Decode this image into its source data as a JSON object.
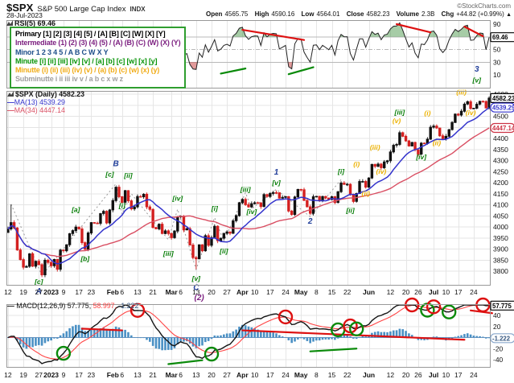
{
  "header": {
    "symbol": "$SPX",
    "name": "S&P 500 Large Cap Index",
    "exchange": "INDX",
    "source": "©StockCharts.com",
    "date": "28-Jul-2023",
    "quote": [
      {
        "label": "Open",
        "value": "4565.75"
      },
      {
        "label": "High",
        "value": "4590.16"
      },
      {
        "label": "Low",
        "value": "4564.01"
      },
      {
        "label": "Close",
        "value": "4582.23"
      },
      {
        "label": "Volume",
        "value": "2.3B"
      },
      {
        "label": "Chg",
        "value": "+44.82 (+0.99%)"
      }
    ],
    "chg_arrow": "▲"
  },
  "wave_legend": {
    "lines": [
      {
        "text": "Primary [1] [2] [3] [4] [5] / [A] [B] [C] [W] [X] [Y]",
        "color": "#000000"
      },
      {
        "text": "Intermediate (1) (2) (3) (4) (5) / (A) (B) (C) (W) (X) (Y)",
        "color": "#7d2181"
      },
      {
        "text": "Minor 1 2 3 4 5 / A B C W X Y",
        "color": "#1d4e89"
      },
      {
        "text": "Minute [i] [ii] [iii] [iv] [v] / [a] [b] [c] [w] [x] [y]",
        "color": "#089408"
      },
      {
        "text": "Minutte (i) (ii) (iii) (iv) (v) / (a) (b) (c) (w) (x) (y)",
        "color": "#f0ac18"
      },
      {
        "text": "Subminutte i ii iii iv v / a b c x w z",
        "color": "#a0a0a0"
      }
    ]
  },
  "rsi_legend": {
    "label": "RSI(5) 69.46"
  },
  "price_legend": {
    "dash": "—",
    "symbol_line": "$SPX (Daily) 4582.23",
    "ma13": "MA(13) 4539.29",
    "ma34": "MA(34) 4447.14"
  },
  "macd_legend": {
    "dash": "—",
    "main": " MACD(12,26,9) 57.775,",
    "signal": " 58.997,",
    "hist": " -1.222"
  },
  "colors": {
    "up": "#111111",
    "down": "#d42020",
    "ma13": "#3333cc",
    "ma34": "#d94f63",
    "macd": "#111111",
    "signal": "#ff4444",
    "hist": "#4a90c4",
    "hist_text": "#33557f",
    "hist_box_border": "#8aa8cc",
    "circle_red": "#dd1111",
    "circle_green": "#0a8a0a",
    "grid": "#e6e6e6",
    "panel_border": "#999999",
    "zigzag": "#9a9a9a",
    "rsi_fill_high": "rgba(0,110,0,0.35)",
    "rsi_fill_low": "rgba(190,30,30,0.45)",
    "wave": {
      "minor": "#223f9a",
      "minute": "#067d06",
      "intermediate": "#7d2181",
      "minutte": "#ecb100"
    }
  },
  "chart_data": {
    "type": "candlestick",
    "title": "$SPX S&P 500 Large Cap Index (Daily) with RSI(5) and MACD(12,26,9)",
    "x_axis": {
      "ticks": [
        [
          "12",
          0,
          0
        ],
        [
          "19",
          5,
          0
        ],
        [
          "27",
          10,
          0
        ],
        [
          "2023",
          14,
          1
        ],
        [
          "9",
          18,
          0
        ],
        [
          "17",
          23,
          0
        ],
        [
          "23",
          27,
          0
        ],
        [
          "Feb",
          34,
          1
        ],
        [
          "6",
          37,
          0
        ],
        [
          "13",
          42,
          0
        ],
        [
          "21",
          47,
          0
        ],
        [
          "Mar",
          53,
          1
        ],
        [
          "6",
          56,
          0
        ],
        [
          "13",
          61,
          0
        ],
        [
          "20",
          66,
          0
        ],
        [
          "27",
          71,
          0
        ],
        [
          "Apr",
          76,
          1
        ],
        [
          "10",
          80,
          0
        ],
        [
          "17",
          85,
          0
        ],
        [
          "24",
          90,
          0
        ],
        [
          "May",
          95,
          1
        ],
        [
          "8",
          100,
          0
        ],
        [
          "15",
          105,
          0
        ],
        [
          "22",
          110,
          0
        ],
        [
          "Jun",
          117,
          1
        ],
        [
          "12",
          124,
          0
        ],
        [
          "20",
          129,
          0
        ],
        [
          "26",
          133,
          0
        ],
        [
          "Jul",
          138,
          1
        ],
        [
          "10",
          142,
          0
        ],
        [
          "17",
          146,
          0
        ],
        [
          "24",
          151,
          0
        ]
      ]
    },
    "price_panel": {
      "ylim": [
        3800,
        4600
      ],
      "tick_step": 50,
      "first_open": 3975,
      "closes": [
        3990.6,
        4019.7,
        3995.3,
        3895.8,
        3852.4,
        3817.7,
        3821.6,
        3878.4,
        3822.4,
        3844.8,
        3829.3,
        3783.2,
        3849.3,
        3839.5,
        3824.1,
        3853.0,
        3808.1,
        3895.1,
        3892.1,
        3919.3,
        3969.6,
        3983.2,
        3999.1,
        3991.0,
        3928.9,
        3898.9,
        3972.6,
        4019.8,
        4017.0,
        4016.2,
        4060.4,
        4070.6,
        4017.8,
        4076.6,
        4119.2,
        4179.8,
        4136.5,
        4111.1,
        4164.0,
        4117.9,
        4081.5,
        4090.5,
        4137.3,
        4136.1,
        4147.6,
        4090.4,
        4079.1,
        3997.3,
        3991.1,
        4012.3,
        3970.0,
        3982.2,
        3970.2,
        3951.4,
        3981.4,
        4045.6,
        4048.4,
        3986.4,
        3992.0,
        3918.3,
        3861.6,
        3855.8,
        3919.3,
        3891.9,
        3960.3,
        3916.6,
        3951.6,
        4002.9,
        3937.0,
        3948.7,
        3971.0,
        3977.5,
        3971.3,
        4027.8,
        4050.8,
        4109.3,
        4124.5,
        4100.6,
        4090.4,
        4105.0,
        4109.1,
        4108.9,
        4092.0,
        4146.2,
        4137.6,
        4151.3,
        4154.9,
        4154.5,
        4129.8,
        4133.5,
        4137.0,
        4071.6,
        4056.0,
        4135.4,
        4169.5,
        4167.9,
        4119.6,
        4090.8,
        4061.2,
        4136.3,
        4138.1,
        4119.2,
        4137.6,
        4130.6,
        4124.1,
        4136.3,
        4109.9,
        4158.8,
        4198.1,
        4192.0,
        4192.6,
        4145.6,
        4115.2,
        4151.3,
        4205.5,
        4205.5,
        4179.8,
        4221.0,
        4282.4,
        4273.8,
        4283.9,
        4267.5,
        4293.9,
        4298.9,
        4338.9,
        4369.0,
        4372.6,
        4425.8,
        4409.6,
        4388.7,
        4365.7,
        4381.9,
        4348.3,
        4328.8,
        4378.4,
        4376.9,
        4396.4,
        4450.4,
        4455.6,
        4446.8,
        4411.6,
        4399.0,
        4409.5,
        4439.3,
        4472.2,
        4510.0,
        4505.4,
        4522.8,
        4555.0,
        4565.7,
        4534.9,
        4536.3,
        4554.6,
        4567.5,
        4566.8,
        4537.4,
        4582.2
      ],
      "wick_overrides": {
        "1": {
          "hi": 4101
        },
        "61": {
          "lo": 3809
        },
        "156": {
          "hi": 4590.2
        }
      },
      "ma_periods": [
        13,
        34
      ],
      "boxes": [
        {
          "label": "4582.23",
          "value": 4582.23,
          "color": "#000000",
          "rounded": 0
        },
        {
          "label": "4539.29",
          "value": 4539.29,
          "color": "#3333cc",
          "rounded": 1
        },
        {
          "label": "4447.14",
          "value": 4447.14,
          "color": "#cc3344",
          "rounded": 1
        }
      ],
      "zigzag": [
        [
          1,
          4103
        ],
        [
          11,
          3780
        ],
        [
          35,
          4195
        ],
        [
          37,
          4058
        ],
        [
          40,
          4150
        ],
        [
          52,
          3942
        ],
        [
          55,
          4080
        ],
        [
          61,
          3808
        ],
        [
          67,
          4042
        ],
        [
          70,
          3935
        ],
        [
          77,
          4155
        ],
        [
          79,
          4082
        ],
        [
          87,
          4170
        ],
        [
          98,
          4046
        ],
        [
          108,
          4214
        ]
      ],
      "annotations": [
        {
          "t": "[c]",
          "b": 10,
          "p": 3742,
          "c": "minute"
        },
        {
          "t": "A",
          "b": 10,
          "p": 3698,
          "c": "minor",
          "fs": 10
        },
        {
          "t": "[a]",
          "b": 22,
          "p": 4068,
          "c": "minute"
        },
        {
          "t": "[b]",
          "b": 25,
          "p": 3846,
          "c": "minute"
        },
        {
          "t": "B",
          "b": 35,
          "p": 4274,
          "c": "minor",
          "fs": 10
        },
        {
          "t": "[c]",
          "b": 33,
          "p": 4228,
          "c": "minute"
        },
        {
          "t": "[i]",
          "b": 37,
          "p": 4086,
          "c": "minute"
        },
        {
          "t": "[ii]",
          "b": 39,
          "p": 4222,
          "c": "minute"
        },
        {
          "t": "[iii]",
          "b": 52,
          "p": 3870,
          "c": "minute"
        },
        {
          "t": "[iv]",
          "b": 55,
          "p": 4118,
          "c": "minute"
        },
        {
          "t": "[v]",
          "b": 61,
          "p": 3756,
          "c": "minute"
        },
        {
          "t": "C",
          "b": 61,
          "p": 3714,
          "c": "minor",
          "fs": 10
        },
        {
          "t": "(2)",
          "b": 62,
          "p": 3670,
          "c": "intermediate",
          "fs": 10
        },
        {
          "t": "[i]",
          "b": 67,
          "p": 4072,
          "c": "minute"
        },
        {
          "t": "[ii]",
          "b": 70,
          "p": 3880,
          "c": "minute"
        },
        {
          "t": "[iii]",
          "b": 77,
          "p": 4158,
          "c": "minute"
        },
        {
          "t": "[iv]",
          "b": 79,
          "p": 4058,
          "c": "minute"
        },
        {
          "t": "1",
          "b": 87,
          "p": 4236,
          "c": "minor",
          "fs": 10
        },
        {
          "t": "[v]",
          "b": 87,
          "p": 4190,
          "c": "minute"
        },
        {
          "t": "2",
          "b": 98,
          "p": 4014,
          "c": "minor",
          "fs": 10
        },
        {
          "t": "[i]",
          "b": 108,
          "p": 4240,
          "c": "minute"
        },
        {
          "t": "[ii]",
          "b": 111,
          "p": 4064,
          "c": "minute"
        },
        {
          "t": "(i)",
          "b": 113,
          "p": 4272,
          "c": "minutte"
        },
        {
          "t": "(ii)",
          "b": 116,
          "p": 4140,
          "c": "minutte"
        },
        {
          "t": "(iii)",
          "b": 119,
          "p": 4350,
          "c": "minutte"
        },
        {
          "t": "(iv)",
          "b": 121,
          "p": 4240,
          "c": "minutte"
        },
        {
          "t": "(v)",
          "b": 126,
          "p": 4470,
          "c": "minutte"
        },
        {
          "t": "[iii]",
          "b": 127,
          "p": 4508,
          "c": "minute"
        },
        {
          "t": "[iv]",
          "b": 134,
          "p": 4306,
          "c": "minute"
        },
        {
          "t": "(i)",
          "b": 136,
          "p": 4504,
          "c": "minutte"
        },
        {
          "t": "(ii)",
          "b": 139,
          "p": 4370,
          "c": "minutte"
        },
        {
          "t": "(iii)",
          "b": 147,
          "p": 4598,
          "c": "minutte"
        },
        {
          "t": "(iv)",
          "b": 150,
          "p": 4506,
          "c": "minutte"
        },
        {
          "t": "3",
          "b": 152,
          "p": 4702,
          "c": "minor",
          "fs": 10
        },
        {
          "t": "[v]",
          "b": 152,
          "p": 4652,
          "c": "minute"
        }
      ]
    },
    "rsi_panel": {
      "period": 5,
      "last": 69.46,
      "ticks": [
        90,
        70,
        50,
        30,
        10
      ],
      "overbought": 70,
      "oversold": 30,
      "box": {
        "label": "69.46",
        "value": 69.46
      },
      "trendlines": [
        [
          76,
          81,
          96,
          65,
          "R"
        ],
        [
          126,
          90,
          137,
          77,
          "R"
        ],
        [
          148,
          86,
          154,
          71,
          "R"
        ],
        [
          69,
          12,
          77,
          20,
          "G"
        ],
        [
          91,
          11,
          99,
          22,
          "G"
        ]
      ]
    },
    "macd_panel": {
      "params": [
        12,
        26,
        9
      ],
      "ticks": [
        40,
        20,
        0,
        -20,
        -40
      ],
      "boxes": [
        {
          "label": "57.775",
          "value": 57.775,
          "border": "#000000",
          "text": "#000000",
          "rounded": 0
        },
        {
          "label": "-1.222",
          "value": -1.222,
          "border": "#8aa8cc",
          "text": "#33557f",
          "rounded": 1
        }
      ],
      "trendlines": [
        [
          24,
          16,
          37,
          13,
          "R"
        ],
        [
          76,
          13,
          148,
          -4,
          "R"
        ],
        [
          150,
          49,
          157,
          44,
          "R"
        ],
        [
          52,
          -48,
          63,
          -41,
          "G"
        ],
        [
          98,
          -25,
          113,
          -20,
          "G"
        ]
      ],
      "circles": [
        [
          "G",
          18
        ],
        [
          "R",
          42
        ],
        [
          "G",
          66
        ],
        [
          "R",
          90
        ],
        [
          "G",
          107
        ],
        [
          "R",
          111
        ],
        [
          "G",
          113
        ],
        [
          "R",
          131
        ],
        [
          "G",
          136
        ],
        [
          "R",
          138
        ],
        [
          "G",
          143
        ],
        [
          "R",
          154
        ]
      ]
    }
  }
}
